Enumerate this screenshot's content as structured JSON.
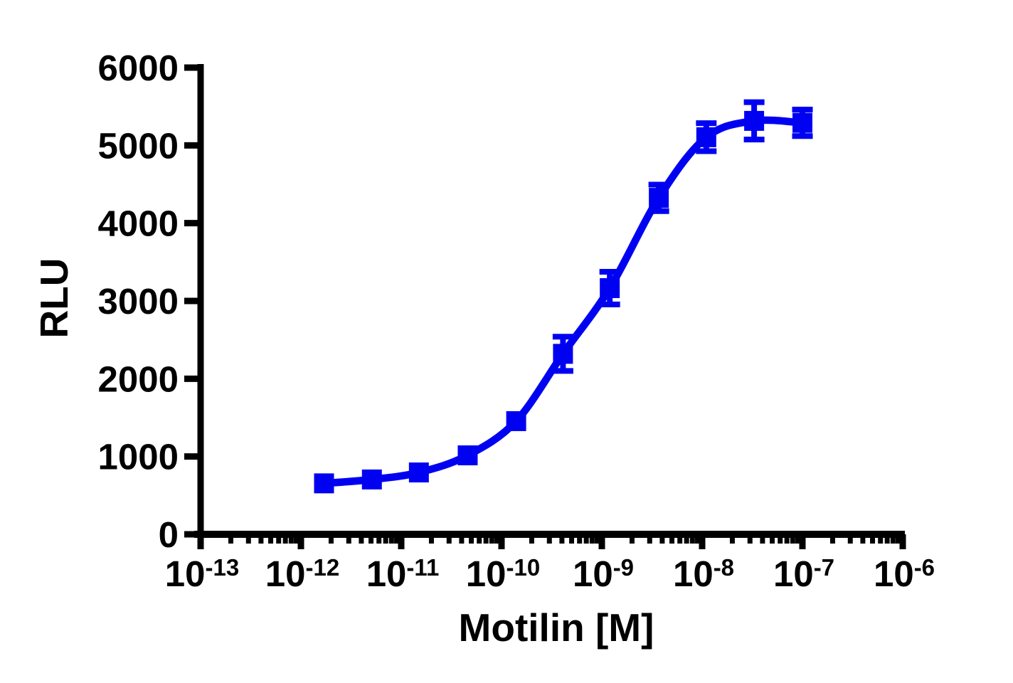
{
  "figure": {
    "background": "#ffffff",
    "axis_color": "#000000"
  },
  "chart_data": {
    "type": "scatter",
    "subtype": "sigmoidal dose-response curve with error bars",
    "title": "",
    "xlabel": "Motilin [M]",
    "ylabel": "RLU",
    "x_scale": "log10",
    "xlim_exponents": [
      -13,
      -6
    ],
    "x_tick_exponents": [
      -13,
      -12,
      -11,
      -10,
      -9,
      -8,
      -7,
      -6
    ],
    "x_minor_ticks": "log positions 2-9 within each decade",
    "y_ticks": [
      0,
      1000,
      2000,
      3000,
      4000,
      5000,
      6000
    ],
    "ylim": [
      0,
      6000
    ],
    "grid": false,
    "legend_position": "none",
    "series": [
      {
        "name": "Motilin",
        "color": "#0101F2",
        "marker": "filled-square",
        "line_style": "smooth sigmoidal fit",
        "x_conc_M": [
          1.7e-12,
          5.1e-12,
          1.5e-11,
          4.6e-11,
          1.4e-10,
          4.1e-10,
          1.2e-09,
          3.7e-09,
          1.1e-08,
          3.3e-08,
          1e-07
        ],
        "y_rlu": [
          655,
          705,
          795,
          1015,
          1455,
          2320,
          3165,
          4325,
          5105,
          5315,
          5290
        ],
        "y_sem": [
          null,
          null,
          null,
          null,
          null,
          220,
          210,
          170,
          180,
          240,
          170
        ]
      }
    ]
  }
}
